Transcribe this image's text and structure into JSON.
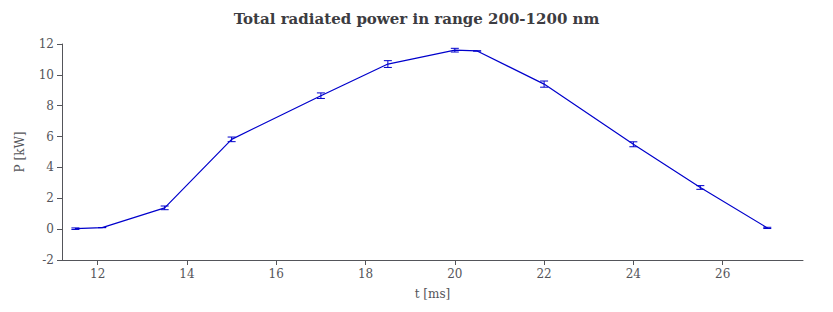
{
  "chart_data": {
    "type": "line",
    "title": "Total radiated power in range 200-1200 nm",
    "xlabel": "t [ms]",
    "ylabel": "P [kW]",
    "x": [
      11.5,
      12.1,
      13.5,
      15.0,
      17.0,
      18.5,
      20.0,
      20.5,
      22.0,
      24.0,
      25.5,
      27.0
    ],
    "values": [
      0.03,
      0.1,
      1.38,
      5.82,
      8.65,
      10.7,
      11.6,
      11.55,
      9.4,
      5.5,
      2.7,
      0.08
    ],
    "yerr": [
      0.05,
      0.0,
      0.12,
      0.15,
      0.18,
      0.22,
      0.12,
      0.0,
      0.2,
      0.16,
      0.12,
      0.04
    ],
    "color": "#0000CC",
    "marker": "none",
    "xlim": [
      11.2,
      27.8
    ],
    "xticks": [
      12,
      14,
      16,
      18,
      20,
      22,
      24,
      26
    ],
    "ylim": [
      -2,
      12
    ],
    "yticks": [
      -2,
      0,
      2,
      4,
      6,
      8,
      10,
      12
    ],
    "grid": false
  }
}
